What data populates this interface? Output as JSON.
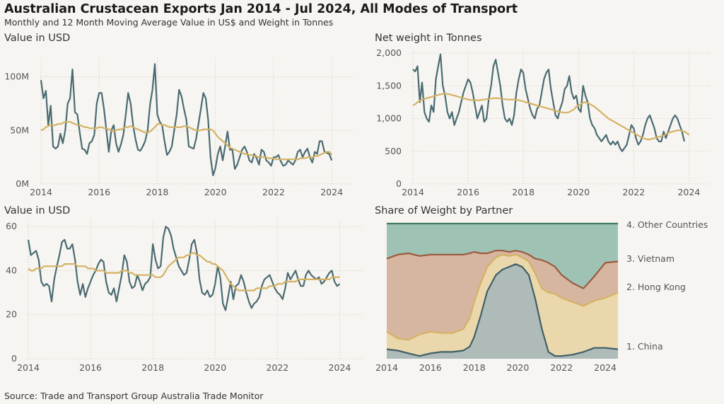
{
  "header": {
    "title": "Australian Crustacean Exports Jan 2014 - Jul 2024, All Modes of Transport",
    "subtitle": "Monthly and 12 Month Moving Average Value in US$ and Weight in Tonnes"
  },
  "footer": {
    "source": "Source: Trade and Transport Group Australia Trade Monitor"
  },
  "colors": {
    "monthly": "#4a6b72",
    "moving_average": "#d4b264",
    "background": "#f7f5f1"
  },
  "chart_data": [
    {
      "type": "line",
      "title": "Value in USD",
      "x_range": [
        "2014-01",
        "2024-07"
      ],
      "x_ticks": [
        "2014",
        "2016",
        "2018",
        "2020",
        "2022",
        "2024"
      ],
      "y_ticks": [
        "0M",
        "50M",
        "100M"
      ],
      "ylim": [
        0,
        115
      ],
      "y_unit": "M USD",
      "grid": true,
      "series": [
        {
          "values": [
            97,
            80,
            87,
            55,
            73,
            35,
            33,
            35,
            47,
            38,
            50,
            75,
            80,
            107,
            67,
            65,
            48,
            33,
            32,
            28,
            38,
            40,
            46,
            75,
            85,
            85,
            70,
            50,
            30,
            50,
            55,
            38,
            30,
            37,
            46,
            65,
            85,
            75,
            55,
            42,
            32,
            31,
            35,
            40,
            50,
            74,
            88,
            112,
            65,
            58,
            55,
            40,
            27,
            30,
            35,
            50,
            65,
            88,
            82,
            70,
            60,
            35,
            34,
            33,
            42,
            56,
            70,
            85,
            80,
            60,
            25,
            8,
            15,
            28,
            35,
            22,
            35,
            49,
            32,
            32,
            14,
            18,
            25,
            32,
            35,
            30,
            22,
            20,
            28,
            24,
            18,
            32,
            30,
            22,
            20,
            17,
            25,
            25,
            27,
            21,
            17,
            18,
            22,
            20,
            18,
            22,
            30,
            32,
            25,
            30,
            33,
            25,
            20,
            30,
            28,
            40,
            40,
            30,
            29,
            28,
            22
          ]
        },
        {
          "values": [
            50,
            51,
            53,
            54,
            55,
            55,
            55,
            56,
            56,
            57,
            58,
            58,
            58,
            57,
            56,
            55,
            55,
            54,
            53,
            53,
            52,
            52,
            52,
            52,
            53,
            53,
            52,
            52,
            51,
            50,
            49,
            50,
            51,
            51,
            52,
            53,
            53,
            54,
            53,
            52,
            51,
            50,
            49,
            48,
            48,
            49,
            51,
            53,
            56,
            56,
            55,
            55,
            54,
            53,
            53,
            53,
            53,
            53,
            53,
            54,
            54,
            53,
            52,
            51,
            50,
            50,
            50,
            51,
            51,
            51,
            51,
            50,
            47,
            44,
            42,
            40,
            38,
            36,
            34,
            33,
            32,
            31,
            30,
            29,
            28,
            28,
            27,
            27,
            26,
            26,
            25,
            25,
            25,
            25,
            24,
            24,
            24,
            23,
            23,
            23,
            23,
            23,
            23,
            23,
            23,
            23,
            23,
            24,
            24,
            24,
            25,
            25,
            25,
            26,
            26,
            27,
            28,
            29,
            30,
            30,
            27
          ]
        }
      ]
    },
    {
      "type": "line",
      "title": "Net weight in Tonnes",
      "x_range": [
        "2014-01",
        "2024-07"
      ],
      "x_ticks": [
        "2014",
        "2016",
        "2018",
        "2020",
        "2022",
        "2024"
      ],
      "y_ticks": [
        "0",
        "500",
        "1,000",
        "1,500",
        "2,000"
      ],
      "ylim": [
        0,
        2000
      ],
      "grid": true,
      "series": [
        {
          "values": [
            1750,
            1720,
            1800,
            1250,
            1550,
            1100,
            1000,
            950,
            1200,
            1100,
            1600,
            1800,
            1980,
            1500,
            1350,
            1100,
            1000,
            1100,
            900,
            1000,
            1100,
            1250,
            1400,
            1500,
            1600,
            1550,
            1400,
            1200,
            1000,
            1100,
            1200,
            950,
            1000,
            1300,
            1500,
            1800,
            1900,
            1700,
            1500,
            1200,
            1000,
            950,
            1000,
            900,
            1050,
            1400,
            1600,
            1750,
            1700,
            1450,
            1300,
            1150,
            1050,
            1000,
            1150,
            1200,
            1400,
            1600,
            1700,
            1750,
            1450,
            1250,
            1050,
            1000,
            1150,
            1250,
            1450,
            1500,
            1650,
            1400,
            1300,
            1350,
            1150,
            1100,
            1500,
            1350,
            1250,
            1000,
            900,
            850,
            750,
            700,
            650,
            700,
            750,
            650,
            600,
            650,
            600,
            650,
            550,
            500,
            550,
            600,
            750,
            900,
            850,
            700,
            600,
            650,
            750,
            900,
            1000,
            1050,
            950,
            850,
            700,
            650,
            650,
            800,
            700,
            800,
            900,
            1000,
            1050,
            1000,
            900,
            800,
            650
          ]
        },
        {
          "values": [
            1200,
            1220,
            1250,
            1270,
            1290,
            1300,
            1310,
            1320,
            1330,
            1340,
            1350,
            1360,
            1370,
            1375,
            1380,
            1375,
            1370,
            1360,
            1350,
            1340,
            1330,
            1320,
            1310,
            1300,
            1290,
            1285,
            1280,
            1280,
            1280,
            1280,
            1285,
            1290,
            1295,
            1300,
            1305,
            1310,
            1310,
            1310,
            1305,
            1300,
            1295,
            1290,
            1290,
            1290,
            1290,
            1285,
            1280,
            1270,
            1260,
            1250,
            1240,
            1230,
            1220,
            1210,
            1200,
            1190,
            1180,
            1170,
            1160,
            1150,
            1140,
            1130,
            1120,
            1110,
            1100,
            1095,
            1090,
            1090,
            1100,
            1120,
            1140,
            1180,
            1200,
            1220,
            1240,
            1250,
            1240,
            1220,
            1200,
            1180,
            1150,
            1120,
            1090,
            1060,
            1030,
            1000,
            980,
            960,
            940,
            920,
            900,
            880,
            860,
            840,
            820,
            800,
            780,
            760,
            740,
            720,
            700,
            690,
            680,
            680,
            690,
            700,
            710,
            720,
            730,
            740,
            760,
            780,
            790,
            800,
            810,
            820,
            820,
            810,
            800,
            780,
            750
          ]
        }
      ]
    },
    {
      "type": "line",
      "title": "Value in USD",
      "x_range": [
        "2014-01",
        "2024-07"
      ],
      "x_ticks": [
        "2014",
        "2016",
        "2018",
        "2020",
        "2022",
        "2024"
      ],
      "y_ticks": [
        "0",
        "20",
        "40",
        "60"
      ],
      "ylim": [
        0,
        62
      ],
      "grid": true,
      "series": [
        {
          "values": [
            54,
            47,
            48,
            49,
            45,
            35,
            33,
            34,
            33,
            26,
            36,
            42,
            47,
            53,
            54,
            50,
            50,
            52,
            45,
            35,
            29,
            34,
            28,
            32,
            35,
            38,
            40,
            43,
            45,
            44,
            35,
            30,
            29,
            32,
            26,
            32,
            38,
            47,
            44,
            35,
            32,
            33,
            38,
            35,
            31,
            34,
            35,
            37,
            52,
            45,
            41,
            42,
            55,
            60,
            59,
            56,
            50,
            46,
            42,
            40,
            38,
            39,
            45,
            52,
            54,
            48,
            36,
            30,
            29,
            31,
            28,
            29,
            34,
            42,
            37,
            25,
            22,
            28,
            35,
            27,
            33,
            34,
            38,
            35,
            30,
            26,
            23,
            25,
            26,
            28,
            33,
            36,
            37,
            38,
            35,
            32,
            30,
            29,
            27,
            32,
            39,
            36,
            38,
            40,
            36,
            33,
            33,
            38,
            40,
            38,
            37,
            36,
            37,
            34,
            35,
            37,
            39,
            40,
            35,
            33,
            34
          ]
        },
        {
          "values": [
            41,
            40,
            40,
            41,
            41,
            41,
            42,
            42,
            42,
            42,
            42,
            42,
            42,
            42,
            43,
            43,
            43,
            43,
            43,
            42,
            42,
            42,
            42,
            41,
            41,
            41,
            40,
            40,
            40,
            40,
            39,
            39,
            39,
            39,
            39,
            39,
            40,
            40,
            40,
            39,
            39,
            38,
            38,
            38,
            38,
            38,
            38,
            38,
            38,
            37,
            37,
            37,
            38,
            40,
            42,
            43,
            44,
            45,
            46,
            46,
            46,
            47,
            47,
            48,
            48,
            47,
            47,
            46,
            45,
            44,
            44,
            43,
            43,
            42,
            41,
            40,
            38,
            36,
            34,
            33,
            32,
            31,
            31,
            31,
            31,
            31,
            31,
            31,
            32,
            32,
            32,
            32,
            32,
            33,
            33,
            33,
            34,
            34,
            34,
            35,
            35,
            35,
            35,
            35,
            36,
            36,
            36,
            36,
            36,
            36,
            36,
            36,
            36,
            36,
            36,
            36,
            36,
            37,
            37,
            37,
            37
          ]
        }
      ]
    },
    {
      "type": "area",
      "title": "Share of Weight by Partner",
      "x_range": [
        "2014-01",
        "2024-07"
      ],
      "x_ticks": [
        "2014",
        "2016",
        "2018",
        "2020",
        "2022",
        "2024"
      ],
      "ylim": [
        0,
        1
      ],
      "stacked": true,
      "grid": false,
      "series_labels": [
        {
          "name": "1. China",
          "color": "#aebbb8",
          "line": "#3f5f66"
        },
        {
          "name": "2. Hong Kong",
          "color": "#ebd7ac",
          "line": "#d4b264"
        },
        {
          "name": "3. Vietnam",
          "color": "#d7b6a1",
          "line": "#9c5a3f"
        },
        {
          "name": "4. Other Countries",
          "color": "#9ec3b4",
          "line": "#3f7a60"
        }
      ],
      "x": [
        2014,
        2014.5,
        2015,
        2015.5,
        2016,
        2016.5,
        2017,
        2017.5,
        2017.8,
        2018,
        2018.3,
        2018.6,
        2019,
        2019.3,
        2019.6,
        2019.9,
        2020.2,
        2020.5,
        2020.8,
        2021.1,
        2021.4,
        2021.7,
        2022,
        2022.5,
        2023,
        2023.5,
        2024,
        2024.58
      ],
      "cumulative_shares": [
        [
          0.07,
          0.06,
          0.04,
          0.02,
          0.04,
          0.05,
          0.05,
          0.06,
          0.09,
          0.16,
          0.32,
          0.5,
          0.62,
          0.66,
          0.68,
          0.7,
          0.68,
          0.62,
          0.44,
          0.22,
          0.05,
          0.02,
          0.02,
          0.03,
          0.05,
          0.08,
          0.08,
          0.07
        ],
        [
          0.2,
          0.15,
          0.14,
          0.18,
          0.2,
          0.19,
          0.19,
          0.22,
          0.3,
          0.42,
          0.56,
          0.68,
          0.75,
          0.77,
          0.76,
          0.77,
          0.75,
          0.72,
          0.63,
          0.52,
          0.49,
          0.48,
          0.45,
          0.42,
          0.39,
          0.43,
          0.45,
          0.49
        ],
        [
          0.74,
          0.77,
          0.78,
          0.76,
          0.77,
          0.77,
          0.77,
          0.77,
          0.78,
          0.79,
          0.78,
          0.78,
          0.8,
          0.8,
          0.79,
          0.8,
          0.79,
          0.77,
          0.74,
          0.73,
          0.71,
          0.68,
          0.62,
          0.56,
          0.52,
          0.61,
          0.71,
          0.72
        ],
        [
          1.0,
          1.0,
          1.0,
          1.0,
          1.0,
          1.0,
          1.0,
          1.0,
          1.0,
          1.0,
          1.0,
          1.0,
          1.0,
          1.0,
          1.0,
          1.0,
          1.0,
          1.0,
          1.0,
          1.0,
          1.0,
          1.0,
          1.0,
          1.0,
          1.0,
          1.0,
          1.0,
          1.0
        ]
      ]
    }
  ]
}
